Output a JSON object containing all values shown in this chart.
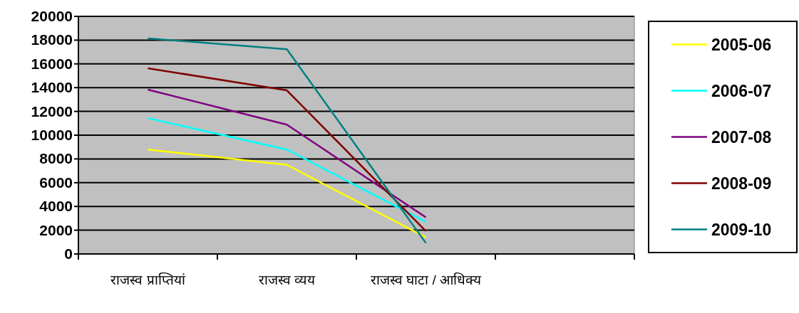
{
  "chart_data": {
    "type": "line",
    "categories": [
      "राजस्व प्राप्तियां",
      "राजस्व व्यय",
      "राजस्व घाटा / आधिक्य",
      null
    ],
    "series": [
      {
        "name": "2005-06",
        "color": "#ffff00",
        "values": [
          8790,
          7500,
          1400,
          null
        ]
      },
      {
        "name": "2006-07",
        "color": "#00ffff",
        "values": [
          11430,
          8790,
          2700,
          null
        ]
      },
      {
        "name": "2007-08",
        "color": "#800080",
        "values": [
          13830,
          10880,
          3080,
          null
        ]
      },
      {
        "name": "2008-09",
        "color": "#800000",
        "values": [
          15630,
          13770,
          1920,
          null
        ]
      },
      {
        "name": "2009-10",
        "color": "#008080",
        "values": [
          18150,
          17230,
          920,
          null
        ]
      }
    ],
    "ylim": [
      0,
      20000
    ],
    "yticks": [
      0,
      2000,
      4000,
      6000,
      8000,
      10000,
      12000,
      14000,
      16000,
      18000,
      20000
    ],
    "grid": "y",
    "legend": "right",
    "marker": "none",
    "line_style": "solid"
  }
}
